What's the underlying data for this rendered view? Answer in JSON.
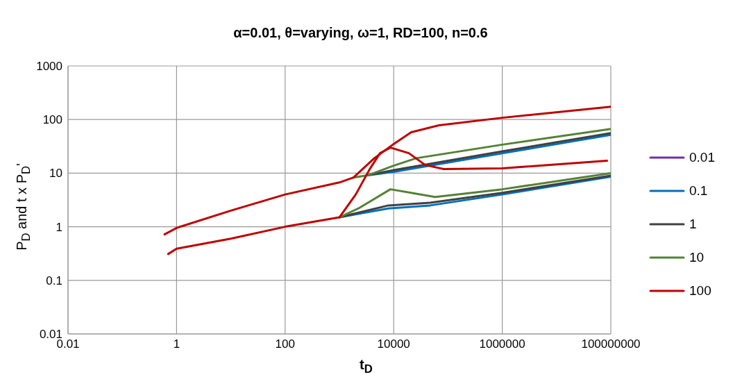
{
  "chart_data": {
    "type": "line",
    "title": "α=0.01, θ=varying, ω=1, RD=100, n=0.6",
    "xlabel": "t$_{D}$",
    "ylabel": "P$_{D}$ and t x P$_{D}$'",
    "log": "xy",
    "grid": true,
    "legend": "right",
    "xlim": [
      0.01,
      100000000
    ],
    "xticks": [
      0.01,
      1,
      100,
      10000,
      1000000,
      100000000
    ],
    "ylim": [
      0.01,
      1000
    ],
    "yticks": [
      0.01,
      0.1,
      1,
      10,
      100,
      1000
    ],
    "series": [
      {
        "name": "0.01",
        "color": "#7030a0"
      },
      {
        "name": "0.1",
        "color": "#0070c0",
        "x": [
          3300,
          10000,
          1000000,
          100000000
        ],
        "values": [
          9.1,
          10.6,
          23.5,
          52
        ]
      },
      {
        "color": "#0070c0",
        "x": [
          1000,
          8000,
          47000,
          1000000,
          100000000
        ],
        "values": [
          1.5,
          2.2,
          2.5,
          4.0,
          8.6
        ]
      },
      {
        "name": "1",
        "color": "#404040",
        "x": [
          3300,
          10000,
          1000000,
          100000000
        ],
        "values": [
          9.1,
          11.4,
          25.5,
          56
        ]
      },
      {
        "color": "#404040",
        "x": [
          1000,
          8000,
          47000,
          1000000,
          100000000
        ],
        "values": [
          1.5,
          2.5,
          2.8,
          4.3,
          9.0
        ]
      },
      {
        "name": "10",
        "color": "#548235",
        "x": [
          1820,
          3300,
          10000,
          26000,
          1000000,
          100000000
        ],
        "values": [
          8.3,
          9.1,
          13.8,
          19,
          34,
          67
        ]
      },
      {
        "color": "#548235",
        "x": [
          1000,
          2240,
          8700,
          21000,
          58000,
          1000000,
          100000000
        ],
        "values": [
          1.5,
          2.2,
          5.0,
          4.3,
          3.6,
          5.0,
          10
        ]
      },
      {
        "name": "100",
        "color": "#c00000",
        "x": [
          0.6,
          1,
          10,
          100,
          1000,
          1820,
          4400,
          10000,
          21000,
          68000,
          1000000,
          100000000
        ],
        "values": [
          0.72,
          0.95,
          2.0,
          4.0,
          6.7,
          8.3,
          19,
          35,
          58,
          78,
          108,
          174
        ]
      },
      {
        "color": "#c00000",
        "x": [
          0.7,
          1,
          10,
          100,
          1000,
          2000,
          3600,
          5600,
          8700,
          19000,
          38000,
          83000,
          1000000,
          85000000
        ],
        "values": [
          0.31,
          0.39,
          0.6,
          1.0,
          1.5,
          4.0,
          11.8,
          23.6,
          30,
          23.6,
          14.2,
          11.9,
          12.3,
          17
        ]
      }
    ]
  }
}
